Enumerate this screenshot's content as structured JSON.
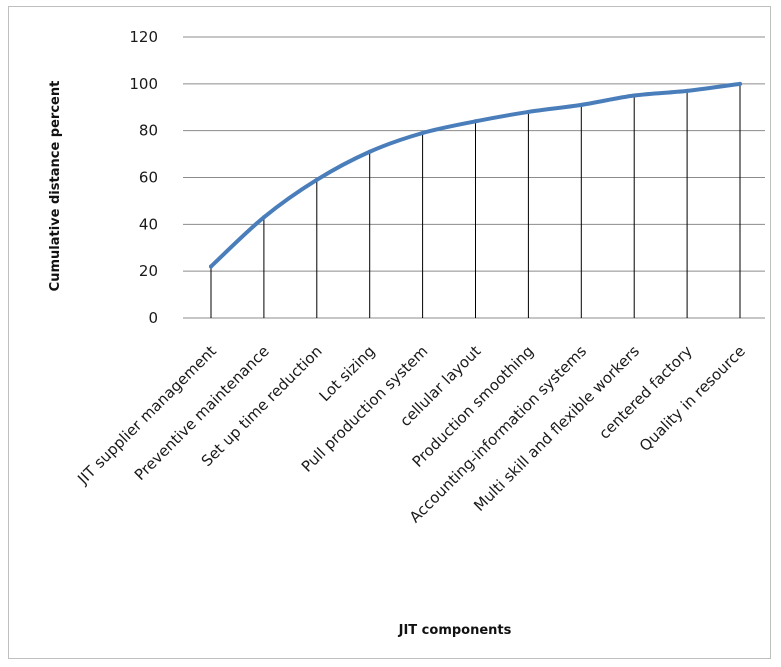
{
  "chart_data": {
    "type": "line",
    "title": "",
    "xlabel": "JIT components",
    "ylabel": "Cumulative distance percent",
    "categories": [
      "JIT supplier management",
      "Preventive maintenance",
      "Set up time reduction",
      "Lot sizing",
      "Pull production system",
      "cellular layout",
      "Production smoothing",
      "Accounting-information systems",
      "Multi skill and flexible workers",
      "centered factory",
      "Quality in resource"
    ],
    "series": [
      {
        "values": [
          22,
          43,
          59,
          71,
          79,
          84,
          88,
          91,
          95,
          97,
          100
        ]
      }
    ],
    "ylim": [
      0,
      120
    ],
    "yticks": [
      0,
      20,
      40,
      60,
      80,
      100,
      120
    ],
    "grid": true,
    "drop_lines": true,
    "legend": "none",
    "colors": {
      "line": "#4a7ebb",
      "grid": "#8c8c8c",
      "drop": "#000000"
    }
  }
}
